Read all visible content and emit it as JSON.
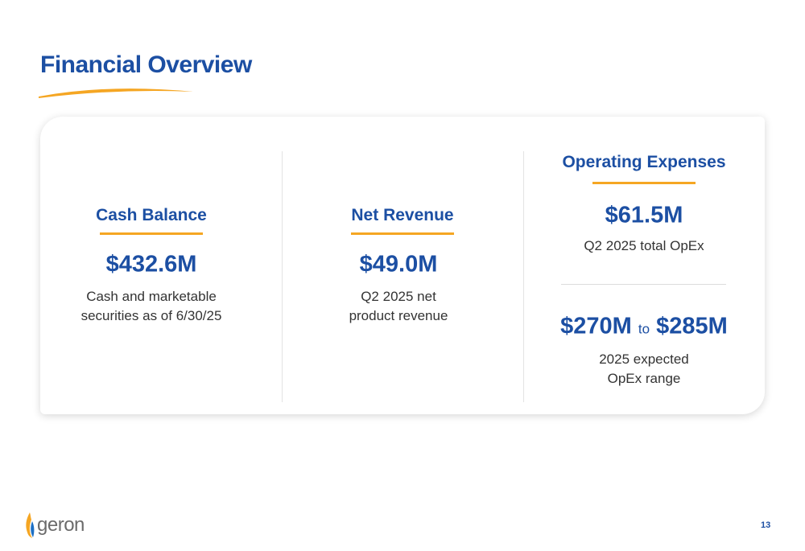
{
  "header": {
    "title": "Financial Overview"
  },
  "panels": [
    {
      "title": "Cash Balance",
      "value": "$432.6M",
      "description": [
        "Cash and marketable",
        "securities as of 6/30/25"
      ]
    },
    {
      "title": "Net Revenue",
      "value": "$49.0M",
      "description": [
        "Q2 2025 net",
        "product revenue"
      ]
    },
    {
      "title": "Operating Expenses",
      "value": "$61.5M",
      "description": [
        "Q2 2025 total OpEx"
      ],
      "range": {
        "low": "$270M",
        "connector": "to",
        "high": "$285M"
      },
      "range_description": [
        "2025 expected",
        "OpEx range"
      ]
    }
  ],
  "footer": {
    "logo": "geron",
    "page_number": "13"
  }
}
